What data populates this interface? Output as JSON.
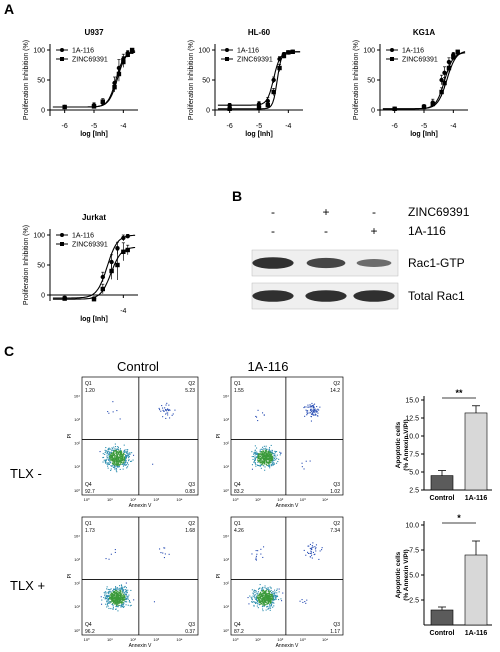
{
  "figure": {
    "panel_letters": [
      "A",
      "B",
      "C"
    ]
  },
  "chart_data": [
    {
      "type": "scatter",
      "panel": "A",
      "title": "U937",
      "xlabel": "log [Inh]",
      "ylabel": "Proliferation Inhibition (%)",
      "xlim": [
        -6.5,
        -3.5
      ],
      "ylim": [
        -10,
        110
      ],
      "xticks": [
        "-6",
        "-5",
        "-4"
      ],
      "yticks": [
        "0",
        "50",
        "100"
      ],
      "legend_position": "top-left",
      "series": [
        {
          "name": "1A-116",
          "marker": "circle",
          "x": [
            -6,
            -5,
            -4.7,
            -4.3,
            -4.15,
            -4,
            -3.85,
            -3.7
          ],
          "y": [
            5,
            8,
            12,
            45,
            70,
            85,
            95,
            97
          ],
          "err": [
            2,
            4,
            5,
            10,
            14,
            8,
            4,
            2
          ],
          "fit": {
            "bottom": 5,
            "top": 97,
            "logEC50": -4.25,
            "hill": 3.2
          }
        },
        {
          "name": "ZINC69391",
          "marker": "square",
          "x": [
            -6,
            -5,
            -4.7,
            -4.3,
            -4.15,
            -4,
            -3.85,
            -3.7
          ],
          "y": [
            5,
            6,
            14,
            38,
            60,
            80,
            92,
            100
          ],
          "err": [
            2,
            3,
            5,
            8,
            12,
            9,
            4,
            2
          ],
          "fit": {
            "bottom": 5,
            "top": 100,
            "logEC50": -4.2,
            "hill": 3.0
          }
        }
      ]
    },
    {
      "type": "scatter",
      "panel": "A",
      "title": "HL-60",
      "xlabel": "log [Inh]",
      "ylabel": "Proliferation Inhibition (%)",
      "xlim": [
        -6.5,
        -3.5
      ],
      "ylim": [
        -10,
        110
      ],
      "xticks": [
        "-6",
        "-5",
        "-4"
      ],
      "yticks": [
        "0",
        "50",
        "100"
      ],
      "legend_position": "top-left",
      "series": [
        {
          "name": "1A-116",
          "marker": "circle",
          "x": [
            -6,
            -5,
            -4.7,
            -4.5,
            -4.3,
            -4.15,
            -4,
            -3.85
          ],
          "y": [
            8,
            10,
            15,
            50,
            85,
            93,
            96,
            97
          ],
          "err": [
            3,
            4,
            6,
            5,
            4,
            3,
            2,
            2
          ],
          "fit": {
            "bottom": 8,
            "top": 97,
            "logEC50": -4.5,
            "hill": 4.0
          }
        },
        {
          "name": "ZINC69391",
          "marker": "square",
          "x": [
            -6,
            -5,
            -4.7,
            -4.5,
            -4.3,
            -4.15,
            -4,
            -3.85
          ],
          "y": [
            2,
            4,
            8,
            30,
            70,
            90,
            96,
            97
          ],
          "err": [
            2,
            3,
            4,
            6,
            6,
            4,
            2,
            2
          ],
          "fit": {
            "bottom": 2,
            "top": 97,
            "logEC50": -4.38,
            "hill": 6.0
          }
        }
      ]
    },
    {
      "type": "scatter",
      "panel": "A",
      "title": "KG1A",
      "xlabel": "log [Inh]",
      "ylabel": "Proliferation Inhibition (%)",
      "xlim": [
        -6.5,
        -3.5
      ],
      "ylim": [
        -10,
        110
      ],
      "xticks": [
        "-6",
        "-5",
        "-4"
      ],
      "yticks": [
        "0",
        "50",
        "100"
      ],
      "legend_position": "top-left",
      "series": [
        {
          "name": "1A-116",
          "marker": "circle",
          "x": [
            -6,
            -5,
            -4.7,
            -4.4,
            -4.3,
            -4.15,
            -4,
            -3.85
          ],
          "y": [
            2,
            5,
            12,
            50,
            62,
            80,
            92,
            95
          ],
          "err": [
            2,
            4,
            6,
            8,
            10,
            7,
            4,
            2
          ],
          "fit": {
            "bottom": 2,
            "top": 96,
            "logEC50": -4.3,
            "hill": 3.0
          }
        },
        {
          "name": "ZINC69391",
          "marker": "square",
          "x": [
            -6,
            -5,
            -4.7,
            -4.4,
            -4.3,
            -4.15,
            -4,
            -3.85
          ],
          "y": [
            2,
            5,
            10,
            30,
            45,
            70,
            88,
            97
          ],
          "err": [
            2,
            4,
            5,
            7,
            9,
            8,
            5,
            2
          ],
          "fit": {
            "bottom": 2,
            "top": 99,
            "logEC50": -4.22,
            "hill": 2.8
          }
        }
      ]
    },
    {
      "type": "scatter",
      "panel": "A",
      "title": "Jurkat",
      "xlabel": "log [Inh]",
      "ylabel": "Proliferation Inhibition (%)",
      "xlim": [
        -6.5,
        -3.5
      ],
      "ylim": [
        -10,
        110
      ],
      "xticks": [
        "-4"
      ],
      "yticks": [
        "0",
        "50",
        "100"
      ],
      "legend_position": "top-left",
      "series": [
        {
          "name": "1A-116",
          "marker": "circle",
          "x": [
            -6,
            -5,
            -4.7,
            -4.4,
            -4.2,
            -4,
            -3.85
          ],
          "y": [
            -5,
            -6,
            30,
            55,
            78,
            95,
            98
          ],
          "err": [
            3,
            3,
            8,
            12,
            10,
            5,
            3
          ],
          "fit": {
            "bottom": -5,
            "top": 100,
            "logEC50": -4.55,
            "hill": 2.5
          }
        },
        {
          "name": "ZINC69391",
          "marker": "square",
          "x": [
            -6,
            -5,
            -4.7,
            -4.4,
            -4.2,
            -4,
            -3.85
          ],
          "y": [
            -6,
            -7,
            10,
            40,
            50,
            72,
            75
          ],
          "err": [
            3,
            3,
            8,
            14,
            25,
            15,
            8
          ],
          "fit": {
            "bottom": -7,
            "top": 80,
            "logEC50": -4.42,
            "hill": 2.5
          }
        }
      ]
    },
    {
      "type": "bar",
      "panel": "C",
      "categories": [
        "Control",
        "1A-116"
      ],
      "values": [
        4.5,
        13.2
      ],
      "errors": [
        0.7,
        1.0
      ],
      "ylabel": "Apoptotic cells\n(% Annexin V/PI)",
      "ylim": [
        2.5,
        15.0
      ],
      "yticks": [
        "2.5",
        "5.0",
        "7.5",
        "10.0",
        "12.5",
        "15.0"
      ],
      "significance": "**",
      "colors": [
        "#5b5b5b",
        "#d8d8d8"
      ]
    },
    {
      "type": "bar",
      "panel": "C",
      "categories": [
        "Control",
        "1A-116"
      ],
      "values": [
        1.5,
        7.0
      ],
      "errors": [
        0.3,
        1.4
      ],
      "ylabel": "Apoptotic cells\n(% Annexin V/PI)",
      "ylim": [
        0,
        10.0
      ],
      "yticks": [
        "2.5",
        "5.0",
        "7.5",
        "10.0"
      ],
      "significance": "*",
      "colors": [
        "#5b5b5b",
        "#d8d8d8"
      ]
    }
  ],
  "western": {
    "treatments": [
      {
        "label": "ZINC69391",
        "signs": [
          "-",
          "+",
          "-"
        ]
      },
      {
        "label": "1A-116",
        "signs": [
          "-",
          "-",
          "+"
        ]
      }
    ],
    "bands": [
      {
        "label": "Rac1-GTP",
        "intensities": [
          0.95,
          0.8,
          0.55
        ]
      },
      {
        "label": "Total Rac1",
        "intensities": [
          0.95,
          0.95,
          0.95
        ]
      }
    ]
  },
  "flow": {
    "column_labels": [
      "Control",
      "1A-116"
    ],
    "row_labels": [
      "TLX -",
      "TLX +"
    ],
    "x_axis_label": "Annexin V",
    "y_axis_label": "PI",
    "decade_ticks": [
      "10⁰",
      "10¹",
      "10²",
      "10³",
      "10⁴"
    ],
    "plots": [
      {
        "q1_label": "Q1",
        "q1": "1.20",
        "q2_label": "Q2",
        "q2": "5.23",
        "q3_label": "Q3",
        "q3": "0.83",
        "q4_label": "Q4",
        "q4": "92.7"
      },
      {
        "q1_label": "Q1",
        "q1": "1.55",
        "q2_label": "Q2",
        "q2": "14.2",
        "q3_label": "Q3",
        "q3": "1.02",
        "q4_label": "Q4",
        "q4": "83.2"
      },
      {
        "q1_label": "Q1",
        "q1": "1.73",
        "q2_label": "Q2",
        "q2": "1.68",
        "q3_label": "Q3",
        "q3": "0.37",
        "q4_label": "Q4",
        "q4": "96.2"
      },
      {
        "q1_label": "Q1",
        "q1": "4.26",
        "q2_label": "Q2",
        "q2": "7.34",
        "q3_label": "Q3",
        "q3": "1.17",
        "q4_label": "Q4",
        "q4": "87.2"
      }
    ]
  }
}
